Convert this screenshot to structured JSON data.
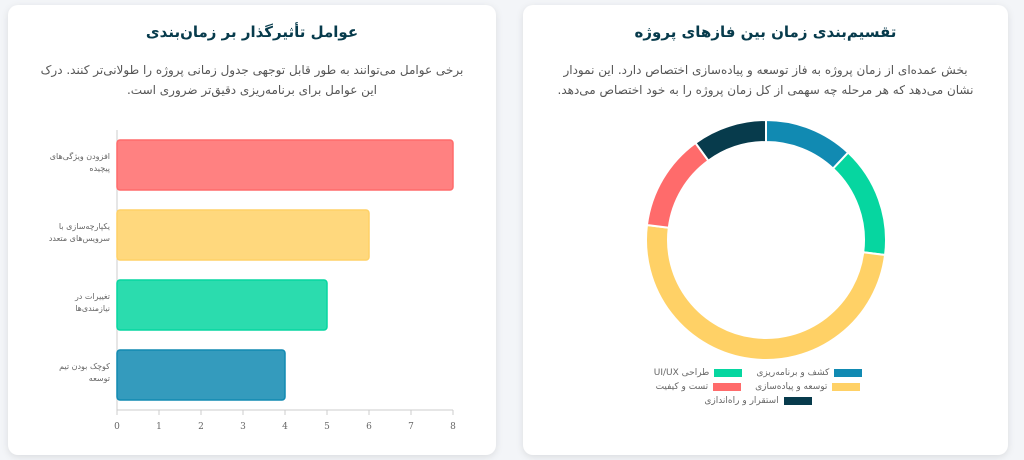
{
  "chart_data": [
    {
      "type": "bar",
      "orientation": "horizontal",
      "title": "عوامل تأثیرگذار بر زمان‌بندی",
      "subtitle": "برخی عوامل می‌توانند به طور قابل توجهی جدول زمانی پروژه را طولانی‌تر کنند. درک این عوامل برای برنامه‌ریزی دقیق‌تر ضروری است.",
      "categories": [
        "افزودن ویژگی‌های پیچیده",
        "یکپارچه‌سازی با سرویس‌های متعدد",
        "تغییرات در نیازمندی‌ها",
        "کوچک بودن تیم توسعه"
      ],
      "values": [
        8,
        6,
        5,
        4
      ],
      "colors": [
        "#ff6b6b",
        "#ffd166",
        "#06d6a0",
        "#118ab2"
      ],
      "xlim": [
        0,
        8
      ],
      "xticks": [
        0,
        1,
        2,
        3,
        4,
        5,
        6,
        7,
        8
      ]
    },
    {
      "type": "doughnut",
      "title": "تقسیم‌بندی زمان بین فازهای پروژه",
      "subtitle": "بخش عمده‌ای از زمان پروژه به فاز توسعه و پیاده‌سازی اختصاص دارد. این نمودار نشان می‌دهد که هر مرحله چه سهمی از کل زمان پروژه را به خود اختصاص می‌دهد.",
      "categories": [
        "کشف و برنامه‌ریزی",
        "طراحی UI/UX",
        "توسعه و پیاده‌سازی",
        "تست و کیفیت",
        "استقرار و راه‌اندازی"
      ],
      "values": [
        12,
        15,
        50,
        13,
        10
      ],
      "colors": [
        "#118ab2",
        "#06d6a0",
        "#ffd166",
        "#ff6b6b",
        "#073b4c"
      ]
    }
  ]
}
